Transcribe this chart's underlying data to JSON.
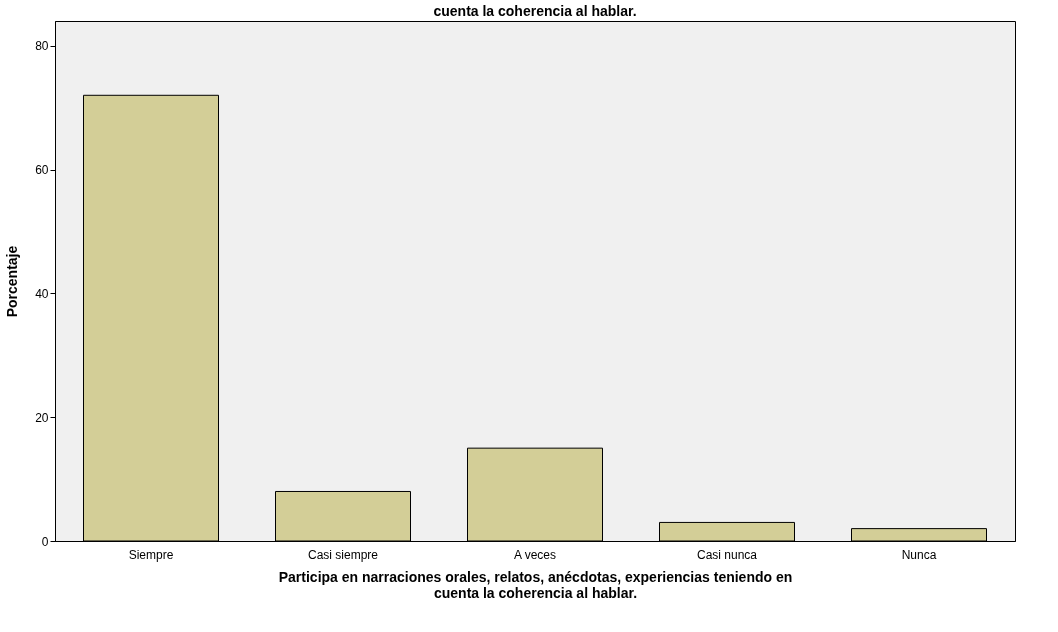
{
  "chart_data": {
    "type": "bar",
    "title": "cuenta la coherencia al hablar.",
    "xlabel": "Participa en narraciones orales, relatos, anécdotas, experiencias teniendo en cuenta la coherencia al hablar.",
    "ylabel": "Porcentaje",
    "categories": [
      "Siempre",
      "Casi siempre",
      "A veces",
      "Casi nunca",
      "Nunca"
    ],
    "values": [
      72,
      8,
      15,
      3,
      2
    ],
    "color": "#d3ce97",
    "ylim": [
      0,
      84
    ],
    "yticks": [
      0,
      20,
      40,
      60,
      80
    ],
    "grid": false
  }
}
